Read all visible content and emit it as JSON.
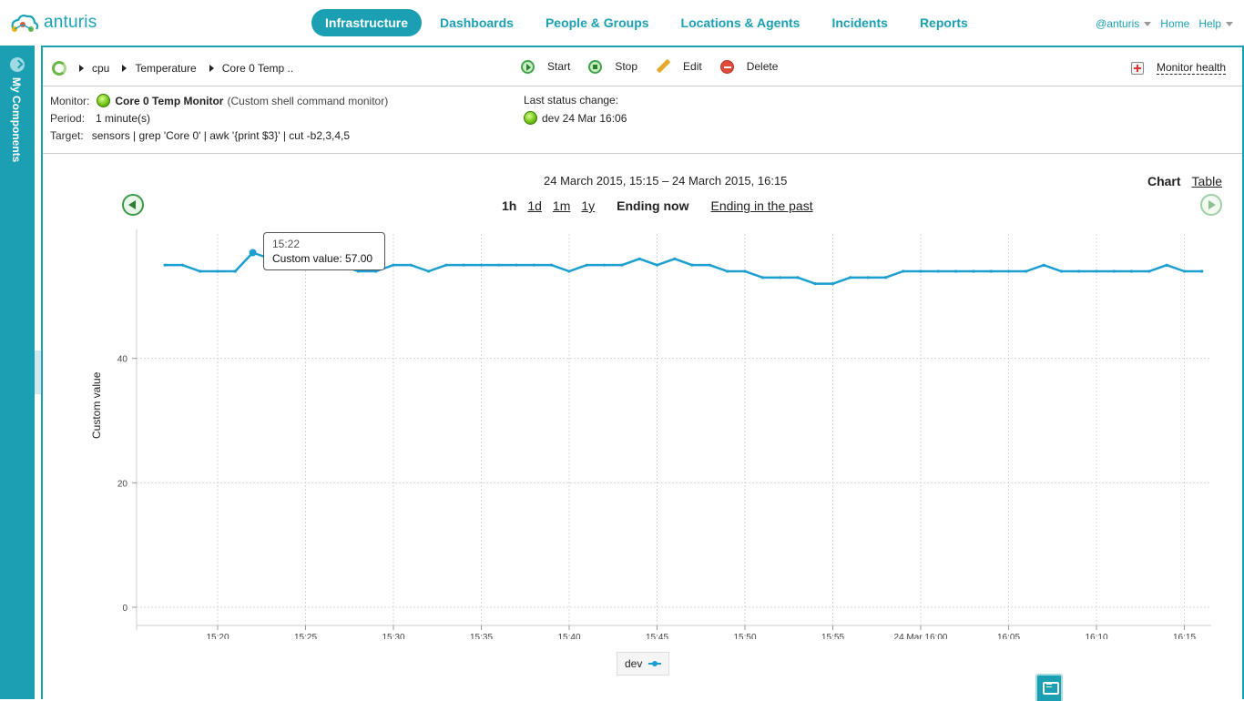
{
  "app": {
    "logo_text": "anturis",
    "nav": [
      {
        "label": "Infrastructure",
        "active": true
      },
      {
        "label": "Dashboards"
      },
      {
        "label": "People & Groups"
      },
      {
        "label": "Locations & Agents"
      },
      {
        "label": "Incidents"
      },
      {
        "label": "Reports"
      }
    ],
    "user": "@anturis",
    "home": "Home",
    "help": "Help",
    "accent": "#1a9fb3"
  },
  "sidebar": {
    "label": "My Components"
  },
  "toolbar": {
    "breadcrumb": [
      "cpu",
      "Temperature",
      "Core 0 Temp .."
    ],
    "start": "Start",
    "stop": "Stop",
    "edit": "Edit",
    "delete": "Delete",
    "monitor_health": "Monitor health"
  },
  "info": {
    "monitor_label": "Monitor:",
    "monitor_name": "Core 0 Temp Monitor",
    "monitor_type": "(Custom shell command monitor)",
    "period_label": "Period:",
    "period_value": "1 minute(s)",
    "target_label": "Target:",
    "target_value": "sensors | grep 'Core 0' | awk '{print $3}' | cut -b2,3,4,5",
    "last_status_label": "Last status change:",
    "last_status_value": "dev 24 Mar 16:06"
  },
  "chart_view": {
    "range": "24 March 2015, 15:15 – 24 March 2015, 16:15",
    "chart": "Chart",
    "table": "Table",
    "periods": [
      "1h",
      "1d",
      "1m",
      "1y"
    ],
    "ending_now": "Ending now",
    "ending_past": "Ending in the past"
  },
  "tooltip": {
    "time": "15:22",
    "value": "Custom value: 57.00"
  },
  "chart_data": {
    "type": "line",
    "ylabel": "Custom value",
    "ylim": [
      0,
      60
    ],
    "yticks": [
      0,
      20,
      40
    ],
    "xticks": [
      "15:20",
      "15:25",
      "15:30",
      "15:35",
      "15:40",
      "15:45",
      "15:50",
      "15:55",
      "24 Mar 16:00",
      "16:05",
      "16:10",
      "16:15"
    ],
    "x_start_min": 17,
    "series": [
      {
        "name": "dev",
        "color": "#1a9fd0",
        "values": [
          55,
          55,
          54,
          54,
          54,
          57,
          56,
          55,
          55,
          55,
          55,
          54,
          54,
          55,
          55,
          54,
          55,
          55,
          55,
          55,
          55,
          55,
          55,
          54,
          55,
          55,
          55,
          56,
          55,
          56,
          55,
          55,
          54,
          54,
          53,
          53,
          53,
          52,
          52,
          53,
          53,
          53,
          54,
          54,
          54,
          54,
          54,
          54,
          54,
          54,
          55,
          54,
          54,
          54,
          54,
          54,
          54,
          55,
          54,
          54
        ]
      }
    ]
  }
}
